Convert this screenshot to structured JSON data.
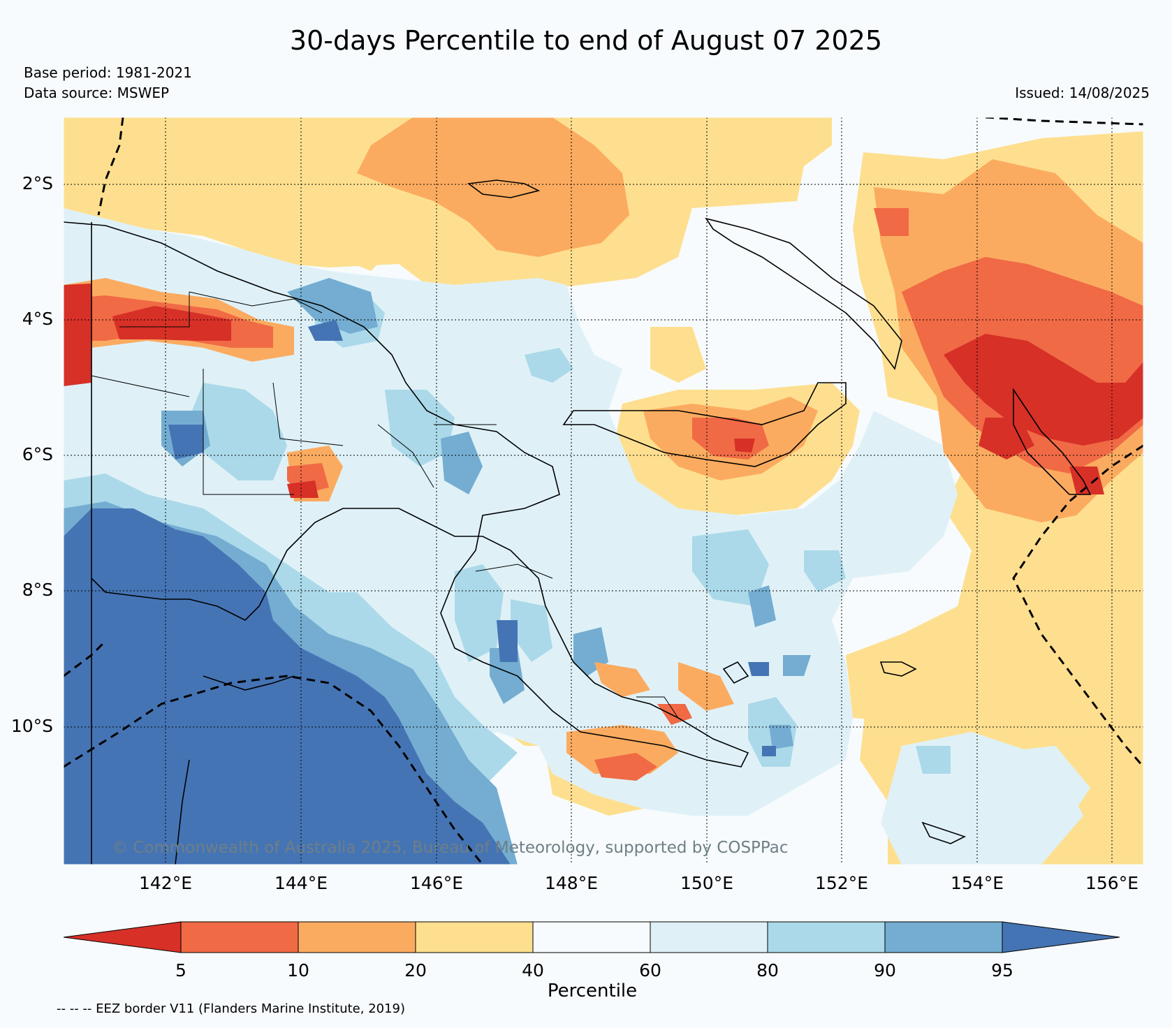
{
  "title": "30-days Percentile to end of August 07 2025",
  "base_period": "Base period: 1981-2021",
  "data_source": "Data source: MSWEP",
  "issued": "Issued: 14/08/2025",
  "credit": "© Commonwealth of Australia 2025, Bureau of Meteorology, supported by COSPPac",
  "latitude_labels": [
    "2°S",
    "4°S",
    "6°S",
    "8°S",
    "10°S"
  ],
  "longitude_labels": [
    "142°E",
    "144°E",
    "146°E",
    "148°E",
    "150°E",
    "152°E",
    "154°E",
    "156°E"
  ],
  "colorbar": {
    "title": "Percentile",
    "ticks": [
      "5",
      "10",
      "20",
      "40",
      "60",
      "80",
      "90",
      "95"
    ],
    "colors": [
      "#d73027",
      "#f06a45",
      "#fbab60",
      "#fedf8f",
      "#f7fbfd",
      "#dff1f7",
      "#abd9e9",
      "#74add1",
      "#4574b4"
    ]
  },
  "eez_note": "-- -- -- EEZ border V11 (Flanders Marine Institute, 2019)"
}
